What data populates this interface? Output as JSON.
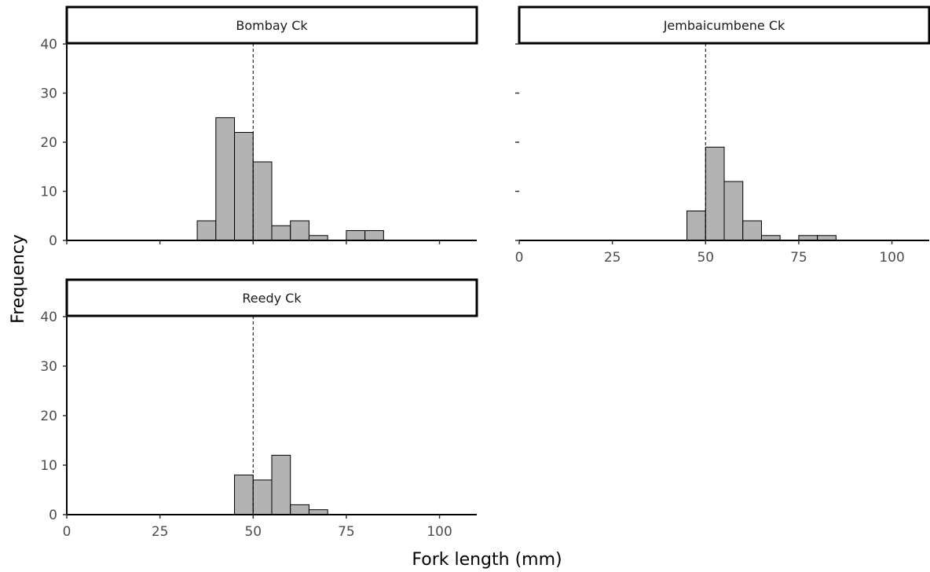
{
  "chart_data": {
    "type": "bar",
    "xlabel": "Fork length (mm)",
    "ylabel": "Frequency",
    "xlim": [
      0,
      110
    ],
    "ylim": [
      0,
      40
    ],
    "xticks": [
      0,
      25,
      50,
      75,
      100
    ],
    "yticks": [
      0,
      10,
      20,
      30,
      40
    ],
    "bin_width": 5,
    "reference_line_x": 50,
    "bar_fill": "#b3b3b3",
    "bar_stroke": "#000000",
    "grid": false,
    "panels": [
      {
        "label": "Bombay Ck",
        "bins": [
          {
            "x0": 35,
            "x1": 40,
            "count": 4
          },
          {
            "x0": 40,
            "x1": 45,
            "count": 25
          },
          {
            "x0": 45,
            "x1": 50,
            "count": 22
          },
          {
            "x0": 50,
            "x1": 55,
            "count": 16
          },
          {
            "x0": 55,
            "x1": 60,
            "count": 3
          },
          {
            "x0": 60,
            "x1": 65,
            "count": 4
          },
          {
            "x0": 65,
            "x1": 70,
            "count": 1
          },
          {
            "x0": 75,
            "x1": 80,
            "count": 2
          },
          {
            "x0": 80,
            "x1": 85,
            "count": 2
          }
        ]
      },
      {
        "label": "Jembaicumbene Ck",
        "bins": [
          {
            "x0": 45,
            "x1": 50,
            "count": 6
          },
          {
            "x0": 50,
            "x1": 55,
            "count": 19
          },
          {
            "x0": 55,
            "x1": 60,
            "count": 12
          },
          {
            "x0": 60,
            "x1": 65,
            "count": 4
          },
          {
            "x0": 65,
            "x1": 70,
            "count": 1
          },
          {
            "x0": 75,
            "x1": 80,
            "count": 1
          },
          {
            "x0": 80,
            "x1": 85,
            "count": 1
          }
        ]
      },
      {
        "label": "Reedy Ck",
        "bins": [
          {
            "x0": 45,
            "x1": 50,
            "count": 8
          },
          {
            "x0": 50,
            "x1": 55,
            "count": 7
          },
          {
            "x0": 55,
            "x1": 60,
            "count": 12
          },
          {
            "x0": 60,
            "x1": 65,
            "count": 2
          },
          {
            "x0": 65,
            "x1": 70,
            "count": 1
          }
        ]
      }
    ]
  }
}
